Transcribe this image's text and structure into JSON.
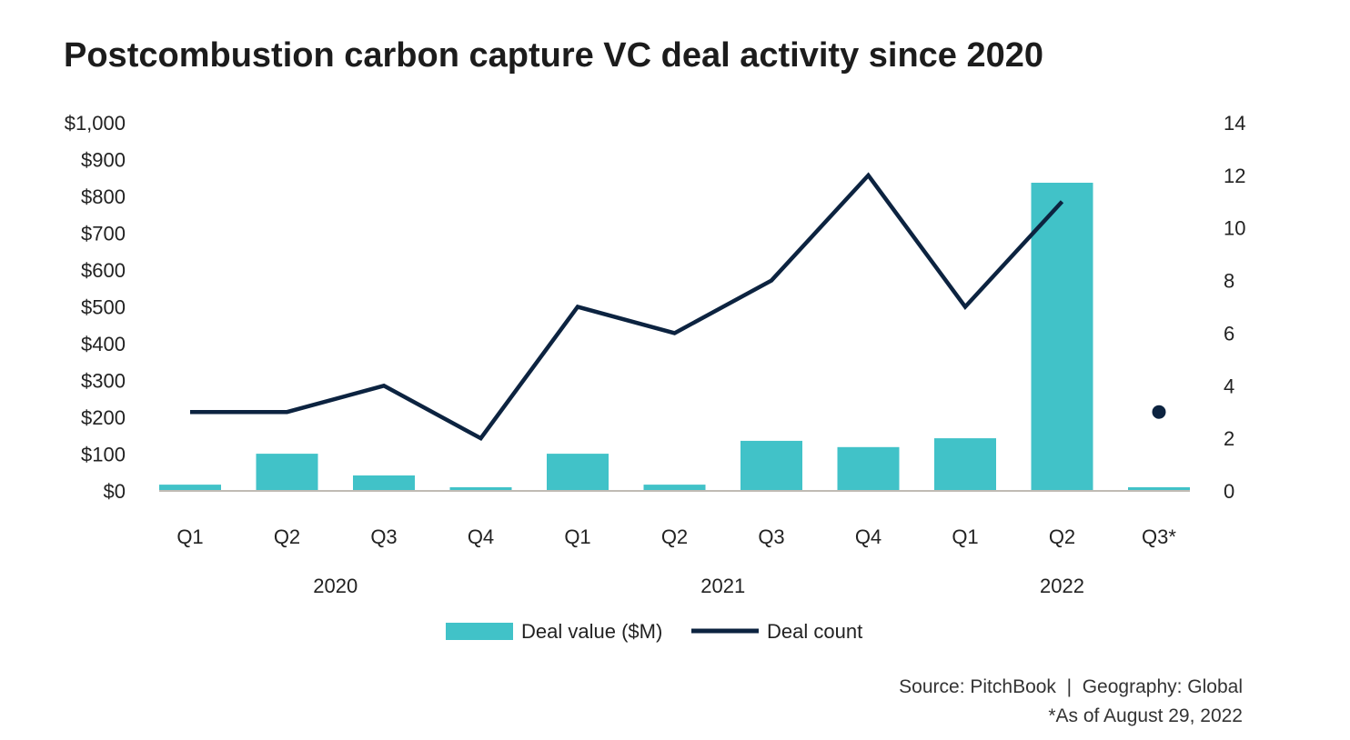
{
  "chart_data": {
    "type": "bar",
    "title": "Postcombustion carbon capture VC deal activity since 2020",
    "categories": [
      "Q1",
      "Q2",
      "Q3",
      "Q4",
      "Q1",
      "Q2",
      "Q3",
      "Q4",
      "Q1",
      "Q2",
      "Q3*"
    ],
    "year_groups": [
      {
        "label": "2020",
        "span": [
          0,
          3
        ]
      },
      {
        "label": "2021",
        "span": [
          4,
          7
        ]
      },
      {
        "label": "2022",
        "span": [
          8,
          10
        ]
      }
    ],
    "series": [
      {
        "name": "Deal value ($M)",
        "type": "bar",
        "axis": "left",
        "color": "#41c2c8",
        "values": [
          17,
          101,
          42,
          10,
          101,
          17,
          136,
          119,
          143,
          837,
          10
        ]
      },
      {
        "name": "Deal count",
        "type": "line",
        "axis": "right",
        "color": "#0c2340",
        "values": [
          3,
          3,
          4,
          2,
          7,
          6,
          8,
          12,
          7,
          11,
          3
        ]
      }
    ],
    "left_axis": {
      "ylim": [
        0,
        1000
      ],
      "ticks": [
        "$0",
        "$100",
        "$200",
        "$300",
        "$400",
        "$500",
        "$600",
        "$700",
        "$800",
        "$900",
        "$1,000"
      ]
    },
    "right_axis": {
      "ylim": [
        0,
        14
      ],
      "ticks": [
        "0",
        "2",
        "4",
        "6",
        "8",
        "10",
        "12",
        "14"
      ]
    },
    "legend": {
      "placement": "bottom-center"
    },
    "grid": false
  },
  "source": "Source: PitchBook  |  Geography: Global",
  "note": "*As of August 29, 2022"
}
